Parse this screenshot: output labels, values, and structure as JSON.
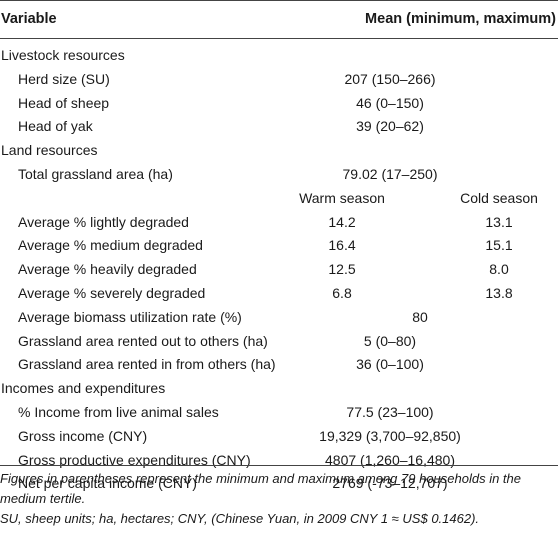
{
  "header": {
    "variable": "Variable",
    "mean": "Mean (minimum, maximum)"
  },
  "rows": [
    {
      "type": "section",
      "label": "Livestock resources"
    },
    {
      "type": "row",
      "label": "Herd size (SU)",
      "value": "207 (150–266)"
    },
    {
      "type": "row",
      "label": "Head of sheep",
      "value": "46 (0–150)"
    },
    {
      "type": "row",
      "label": "Head of yak",
      "value": "39 (20–62)"
    },
    {
      "type": "section",
      "label": "Land resources"
    },
    {
      "type": "row",
      "label": "Total grassland area (ha)",
      "value": "79.02 (17–250)"
    },
    {
      "type": "subheader",
      "warm": "Warm season",
      "cold": "Cold season"
    },
    {
      "type": "split",
      "label": "Average % lightly degraded",
      "warm": "14.2",
      "cold": "13.1"
    },
    {
      "type": "split",
      "label": "Average % medium degraded",
      "warm": "16.4",
      "cold": "15.1"
    },
    {
      "type": "split",
      "label": "Average % heavily degraded",
      "warm": "12.5",
      "cold": "8.0"
    },
    {
      "type": "split",
      "label": "Average % severely degraded",
      "warm": "6.8",
      "cold": "13.8"
    },
    {
      "type": "row80",
      "label": "Average biomass utilization rate (%)",
      "value": "80"
    },
    {
      "type": "row",
      "label": "Grassland area rented out to others (ha)",
      "value": "5 (0–80)"
    },
    {
      "type": "row",
      "label": "Grassland area rented in from others (ha)",
      "value": "36 (0–100)"
    },
    {
      "type": "section",
      "label": "Incomes and expenditures"
    },
    {
      "type": "row",
      "label": "% Income from live animal sales",
      "value": "77.5 (23–100)"
    },
    {
      "type": "row",
      "label": "Gross income (CNY)",
      "value": "19,329 (3,700–92,850)"
    },
    {
      "type": "row",
      "label": "Gross productive expenditures (CNY)",
      "value": "4807 (1,260–16,480)"
    },
    {
      "type": "row",
      "label": "Net per capita income (CNY)",
      "value": "2769 (-73–12,707)"
    }
  ],
  "notes": {
    "line1": "Figures in parentheses represent the minimum and maximum among 79 households in the medium tertile.",
    "line2": "SU, sheep units; ha, hectares; CNY, (Chinese Yuan, in 2009 CNY 1 ≈ US$ 0.1462)."
  }
}
